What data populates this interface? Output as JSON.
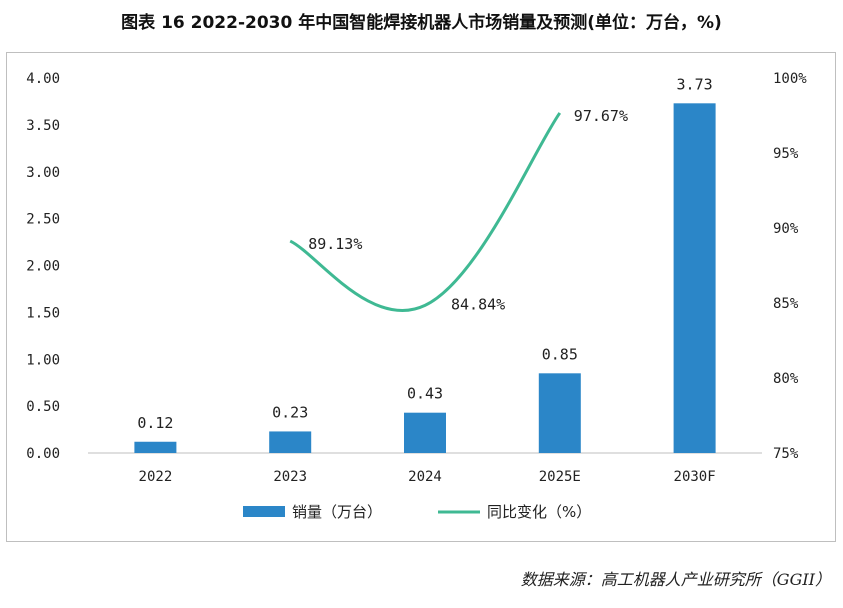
{
  "title": "图表 16   2022-2030 年中国智能焊接机器人市场销量及预测(单位：万台，%)",
  "source": "数据来源：高工机器人产业研究所（GGII）",
  "colors": {
    "bar": "#2b86c8",
    "line": "#3fb993"
  },
  "chart_data": {
    "type": "bar",
    "categories": [
      "2022",
      "2023",
      "2024",
      "2025E",
      "2030F"
    ],
    "series": [
      {
        "name": "销量（万台）",
        "type": "bar",
        "axis": "left",
        "values": [
          0.12,
          0.23,
          0.43,
          0.85,
          3.73
        ],
        "labels": [
          "0.12",
          "0.23",
          "0.43",
          "0.85",
          "3.73"
        ]
      },
      {
        "name": "同比变化（%）",
        "type": "line",
        "axis": "right",
        "values": [
          null,
          89.13,
          84.84,
          97.67,
          null
        ],
        "labels": [
          "",
          "89.13%",
          "84.84%",
          "97.67%",
          ""
        ]
      }
    ],
    "ylim_left": [
      0,
      4
    ],
    "yticks_left": [
      "0.00",
      "0.50",
      "1.00",
      "1.50",
      "2.00",
      "2.50",
      "3.00",
      "3.50",
      "4.00"
    ],
    "ylim_right": [
      75,
      100
    ],
    "yticks_right": [
      "75%",
      "80%",
      "85%",
      "90%",
      "95%",
      "100%"
    ],
    "legend": "bottom",
    "grid": false
  }
}
